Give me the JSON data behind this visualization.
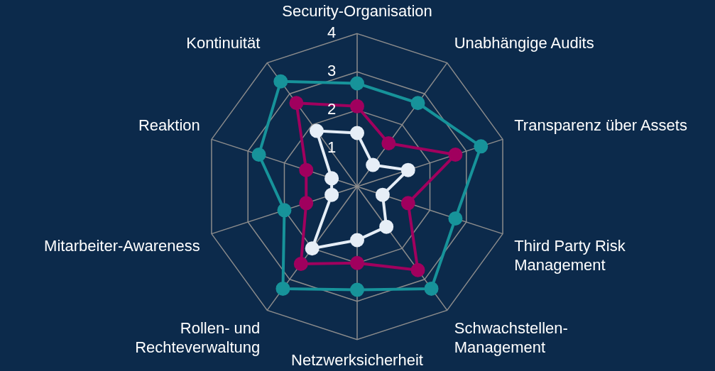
{
  "chart_data": {
    "type": "radar",
    "categories": [
      "Security-Organisation",
      "Unabhängige Audits",
      "Transparenz über Assets",
      "Third Party Risk\nManagement",
      "Schwachstellen-\nManagement",
      "Netzwerksicherheit",
      "Rollen- und\nRechteverwaltung",
      "Mitarbeiter-Awareness",
      "Reaktion",
      "Kontinuität"
    ],
    "series": [
      {
        "color": "#17939a",
        "values": [
          2.7,
          2.7,
          3.4,
          2.7,
          3.3,
          2.7,
          3.3,
          2.0,
          2.7,
          3.4
        ]
      },
      {
        "color": "#a0005e",
        "values": [
          2.1,
          1.4,
          2.7,
          1.4,
          2.7,
          2.0,
          2.5,
          1.4,
          1.4,
          2.7
        ]
      },
      {
        "color": "#e6eef7",
        "values": [
          1.4,
          0.7,
          1.4,
          0.7,
          1.3,
          1.4,
          2.0,
          0.7,
          0.7,
          1.8
        ]
      }
    ],
    "ylim": [
      0,
      4
    ],
    "yticks": [
      1,
      2,
      3,
      4
    ],
    "grid": true,
    "marker": "circle",
    "legend": false
  }
}
